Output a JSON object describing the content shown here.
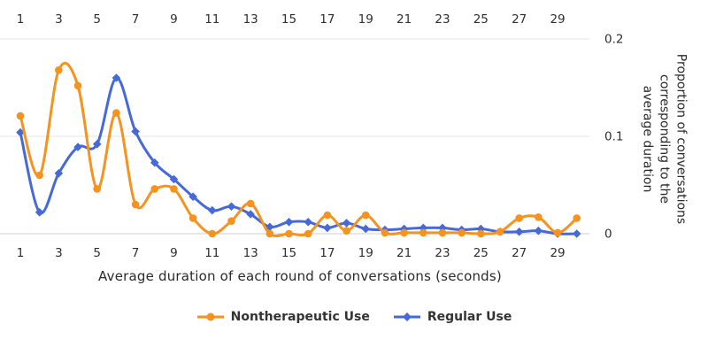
{
  "chart_data": {
    "type": "line",
    "title": "",
    "xlabel": "Average duration of each round of conversations (seconds)",
    "ylabel_lines": [
      "Proportion of conversations",
      "corresponding to the",
      "average duration"
    ],
    "x": [
      1,
      2,
      3,
      4,
      5,
      6,
      7,
      8,
      9,
      10,
      11,
      12,
      13,
      14,
      15,
      16,
      17,
      18,
      19,
      20,
      21,
      22,
      23,
      24,
      25,
      26,
      27,
      28,
      29,
      30
    ],
    "x_ticks": [
      1,
      3,
      5,
      7,
      9,
      11,
      13,
      15,
      17,
      19,
      21,
      23,
      25,
      27,
      29
    ],
    "y_ticks": [
      {
        "value": 0,
        "label": "0"
      },
      {
        "value": 0.1,
        "label": "0.1"
      },
      {
        "value": 0.2,
        "label": "0.2"
      }
    ],
    "ylim": [
      0,
      0.2
    ],
    "xlim": [
      1,
      30
    ],
    "grid": true,
    "legend_position": "bottom",
    "series": [
      {
        "name": "Nontherapeutic Use",
        "color": "#F6921E",
        "marker": "circle",
        "values": [
          0.121,
          0.06,
          0.168,
          0.152,
          0.046,
          0.124,
          0.03,
          0.046,
          0.046,
          0.016,
          0.0,
          0.013,
          0.031,
          0.0,
          0.0,
          0.0,
          0.019,
          0.003,
          0.019,
          0.001,
          0.001,
          0.001,
          0.001,
          0.001,
          0.0,
          0.002,
          0.016,
          0.017,
          0.001,
          0.016
        ]
      },
      {
        "name": "Regular Use",
        "color": "#4569D8",
        "marker": "diamond",
        "values": [
          0.104,
          0.022,
          0.062,
          0.089,
          0.092,
          0.16,
          0.105,
          0.073,
          0.056,
          0.038,
          0.024,
          0.028,
          0.02,
          0.007,
          0.012,
          0.012,
          0.006,
          0.011,
          0.005,
          0.004,
          0.005,
          0.006,
          0.006,
          0.004,
          0.005,
          0.002,
          0.002,
          0.003,
          0.0,
          0.0
        ]
      }
    ],
    "colors": {
      "grid_line": "#e4e4e4",
      "zero_line": "#cfcfcf",
      "tick_text": "#2f2f2f"
    }
  }
}
